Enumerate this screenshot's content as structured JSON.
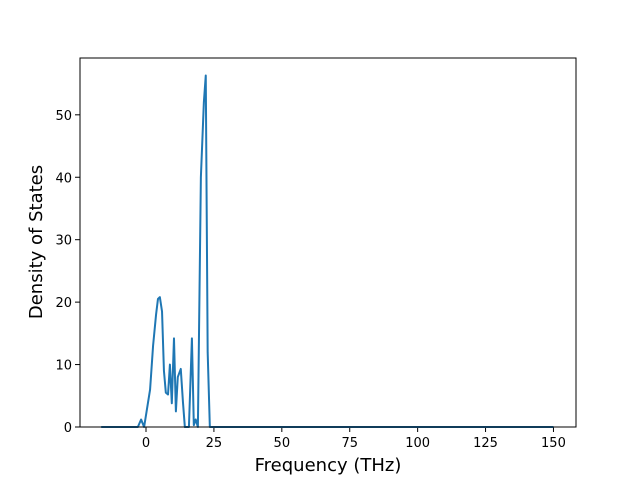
{
  "chart_data": {
    "type": "line",
    "x_label": "Frequency (THz)",
    "y_label": "Density of States",
    "x": [
      -16.5,
      -3,
      -1.8,
      -0.7,
      1.5,
      2.6,
      3.7,
      4.4,
      5.1,
      5.9,
      6.6,
      7.3,
      8.1,
      8.8,
      9.5,
      10.3,
      11,
      11.7,
      12.8,
      13.6,
      14.3,
      15.8,
      16.9,
      17.6,
      18.3,
      19.1,
      20.2,
      21.3,
      22,
      22.7,
      23.5,
      150
    ],
    "series": [
      {
        "color": "#1f77b4",
        "values": [
          0,
          0,
          1.2,
          0,
          6,
          13,
          18,
          20.5,
          20.8,
          18.5,
          9,
          5.5,
          5.2,
          10,
          3.8,
          14.2,
          2.5,
          8,
          9.3,
          4,
          0,
          0,
          14.2,
          0.3,
          1.2,
          0,
          40,
          52,
          56.3,
          12,
          0,
          0
        ]
      }
    ],
    "xlim": [
      -24.3,
      158.3
    ],
    "ylim": [
      0,
      59.1
    ],
    "xticks": [
      0,
      25,
      50,
      75,
      100,
      125,
      150
    ],
    "yticks": [
      0,
      10,
      20,
      30,
      40,
      50
    ]
  }
}
